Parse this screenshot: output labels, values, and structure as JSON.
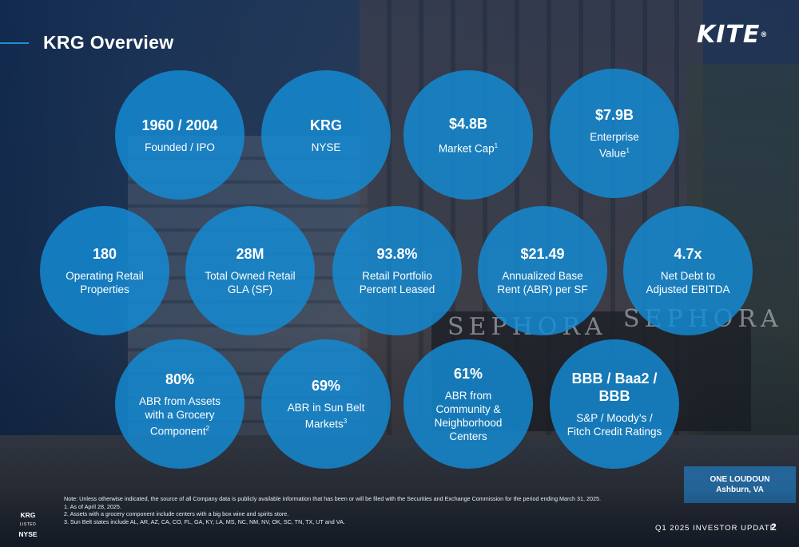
{
  "header": {
    "title": "KRG Overview",
    "logo_text": "KITE",
    "logo_mark": "®"
  },
  "metrics": [
    {
      "value": "1960 / 2004",
      "label": "Founded / IPO",
      "sup": ""
    },
    {
      "value": "KRG",
      "label": "NYSE",
      "sup": ""
    },
    {
      "value": "$4.8B",
      "label": "Market Cap",
      "sup": "1"
    },
    {
      "value": "$7.9B",
      "label": "Enterprise Value",
      "sup": "1"
    },
    {
      "value": "180",
      "label": "Operating Retail Properties",
      "sup": ""
    },
    {
      "value": "28M",
      "label": "Total Owned Retail GLA (SF)",
      "sup": ""
    },
    {
      "value": "93.8%",
      "label": "Retail Portfolio Percent Leased",
      "sup": ""
    },
    {
      "value": "$21.49",
      "label": "Annualized Base Rent (ABR) per SF",
      "sup": ""
    },
    {
      "value": "4.7x",
      "label": "Net Debt to Adjusted EBITDA",
      "sup": ""
    },
    {
      "value": "80%",
      "label": "ABR from Assets with a Grocery Component",
      "sup": "2"
    },
    {
      "value": "69%",
      "label": "ABR in Sun Belt Markets",
      "sup": "3"
    },
    {
      "value": "61%",
      "label": "ABR from Community & Neighborhood Centers",
      "sup": ""
    },
    {
      "value": "BBB / Baa2 / BBB",
      "label": "S&P / Moody’s / Fitch Credit Ratings",
      "sup": ""
    }
  ],
  "location": {
    "name": "ONE LOUDOUN",
    "city": "Ashburn, VA"
  },
  "listing": {
    "ticker": "KRG",
    "listed": "LISTED",
    "exchange": "NYSE"
  },
  "notes": {
    "intro": "Note:  Unless otherwise indicated, the source of all Company data is publicly available information that has been or will be filed with the Securities and Exchange Commission for the period ending March 31, 2025.",
    "items": [
      "1.   As of April 28, 2025.",
      "2.   Assets with a grocery component include centers with a big box wine and spirits store.",
      "3.   Sun Belt states include AL, AR, AZ, CA, CO, FL, GA, KY, LA, MS, NC, NM, NV, OK, SC, TN, TX, UT and VA."
    ]
  },
  "footer": {
    "label": "Q1 2025 INVESTOR UPDATE",
    "page": "2"
  },
  "colors": {
    "circle_fill": "#148cd7",
    "accent": "#1e8fd6"
  }
}
